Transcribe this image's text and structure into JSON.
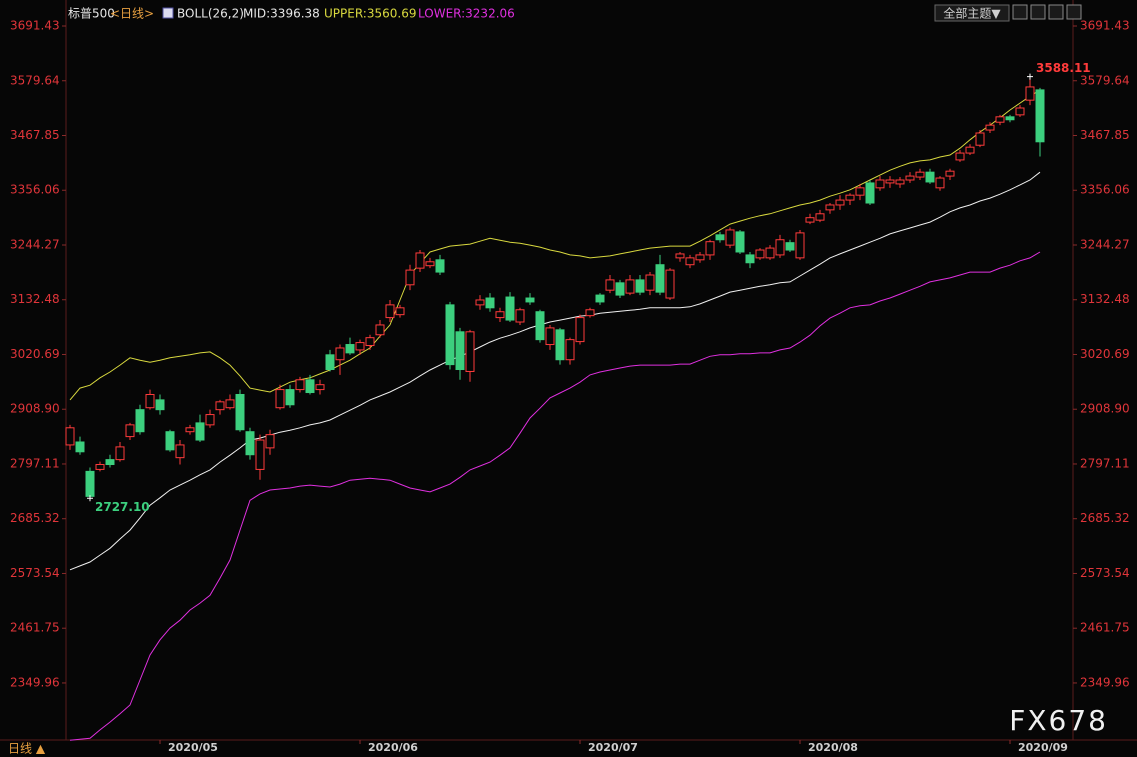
{
  "chart_data": {
    "type": "candlestick",
    "title": "标普500",
    "period": "<日线>",
    "indicator": "BOLL(26,2)",
    "toolbar": "全部主题▼",
    "footer_period": "日线 ▲",
    "watermark": "FX678",
    "annotations": {
      "max": "3588.11",
      "min": "2727.10"
    },
    "up_color": "#ff3b3b",
    "down_color": "#3ccf7e",
    "categories": [
      null,
      null,
      null,
      null,
      null,
      null,
      null,
      null,
      null,
      "2020/05",
      null,
      null,
      null,
      null,
      null,
      null,
      null,
      null,
      null,
      null,
      null,
      null,
      null,
      null,
      null,
      null,
      null,
      null,
      null,
      "2020/06",
      null,
      null,
      null,
      null,
      null,
      null,
      null,
      null,
      null,
      null,
      null,
      null,
      null,
      null,
      null,
      null,
      null,
      null,
      null,
      null,
      null,
      "2020/07",
      null,
      null,
      null,
      null,
      null,
      null,
      null,
      null,
      null,
      null,
      null,
      null,
      null,
      null,
      null,
      null,
      null,
      null,
      null,
      null,
      null,
      "2020/08",
      null,
      null,
      null,
      null,
      null,
      null,
      null,
      null,
      null,
      null,
      null,
      null,
      null,
      null,
      null,
      null,
      null,
      null,
      null,
      null,
      "2020/09",
      null,
      null,
      null
    ],
    "open": [
      2836,
      2842,
      2782,
      2786,
      2806,
      2806,
      2853,
      2908,
      2912,
      2928,
      2863,
      2810,
      2863,
      2881,
      2877,
      2908,
      2912,
      2939,
      2863,
      2786,
      2830,
      2912,
      2949,
      2949,
      2969,
      2949,
      3020,
      3010,
      3041,
      3030,
      3039,
      3061,
      3096,
      3102,
      3163,
      3197,
      3202,
      3214,
      3122,
      3067,
      2986,
      3122,
      3136,
      3096,
      3138,
      3087,
      3136,
      3108,
      3041,
      3071,
      3010,
      3047,
      3100,
      3142,
      3152,
      3167,
      3146,
      3173,
      3152,
      3204,
      3136,
      3218,
      3204,
      3214,
      3224,
      3265,
      3244,
      3271,
      3224,
      3218,
      3218,
      3224,
      3249,
      3218,
      3291,
      3295,
      3316,
      3326,
      3336,
      3346,
      3371,
      3361,
      3371,
      3369,
      3377,
      3383,
      3393,
      3361,
      3385,
      3418,
      3432,
      3448,
      3479,
      3495,
      3506,
      3510,
      3540,
      3561
    ],
    "high": [
      2877,
      2853,
      2790,
      2802,
      2816,
      2842,
      2881,
      2918,
      2949,
      2939,
      2867,
      2846,
      2877,
      2898,
      2908,
      2928,
      2939,
      2949,
      2871,
      2857,
      2867,
      2959,
      2959,
      2975,
      2979,
      2969,
      3030,
      3041,
      3055,
      3051,
      3061,
      3091,
      3132,
      3122,
      3204,
      3234,
      3218,
      3224,
      3128,
      3075,
      3071,
      3142,
      3146,
      3116,
      3148,
      3116,
      3146,
      3112,
      3081,
      3075,
      3055,
      3102,
      3116,
      3146,
      3183,
      3173,
      3183,
      3183,
      3189,
      3224,
      3197,
      3230,
      3224,
      3230,
      3255,
      3271,
      3280,
      3275,
      3230,
      3238,
      3244,
      3265,
      3255,
      3275,
      3308,
      3316,
      3330,
      3346,
      3350,
      3369,
      3377,
      3385,
      3385,
      3383,
      3393,
      3400,
      3400,
      3385,
      3400,
      3438,
      3450,
      3479,
      3495,
      3510,
      3510,
      3530,
      3588.11,
      3565
    ],
    "low": [
      2826,
      2816,
      2727.1,
      2782,
      2790,
      2802,
      2846,
      2857,
      2908,
      2898,
      2822,
      2796,
      2857,
      2842,
      2871,
      2898,
      2908,
      2863,
      2806,
      2765,
      2816,
      2908,
      2912,
      2943,
      2939,
      2939,
      2986,
      2979,
      3020,
      3020,
      3030,
      3055,
      3087,
      3096,
      3152,
      3189,
      3197,
      3183,
      2990,
      2969,
      2965,
      3112,
      3108,
      3087,
      3087,
      3081,
      3122,
      3045,
      3030,
      3000,
      3000,
      3041,
      3096,
      3122,
      3146,
      3136,
      3142,
      3142,
      3142,
      3142,
      3132,
      3210,
      3197,
      3208,
      3214,
      3249,
      3238,
      3226,
      3197,
      3214,
      3214,
      3218,
      3230,
      3214,
      3287,
      3291,
      3308,
      3316,
      3326,
      3336,
      3326,
      3355,
      3361,
      3361,
      3371,
      3377,
      3369,
      3355,
      3377,
      3414,
      3428,
      3444,
      3473,
      3489,
      3495,
      3506,
      3530,
      3425
    ],
    "close": [
      2871,
      2822,
      2731,
      2796,
      2796,
      2832,
      2877,
      2863,
      2939,
      2908,
      2826,
      2836,
      2871,
      2846,
      2898,
      2924,
      2928,
      2867,
      2816,
      2846,
      2857,
      2949,
      2918,
      2969,
      2943,
      2959,
      2990,
      3034,
      3024,
      3045,
      3055,
      3081,
      3122,
      3116,
      3193,
      3228,
      3210,
      3189,
      3000,
      2990,
      3067,
      3132,
      3116,
      3108,
      3091,
      3112,
      3128,
      3051,
      3075,
      3010,
      3051,
      3096,
      3112,
      3128,
      3173,
      3142,
      3173,
      3148,
      3183,
      3148,
      3193,
      3226,
      3218,
      3224,
      3251,
      3255,
      3275,
      3230,
      3208,
      3234,
      3238,
      3255,
      3234,
      3269,
      3300,
      3308,
      3326,
      3336,
      3346,
      3361,
      3330,
      3377,
      3377,
      3377,
      3385,
      3393,
      3373,
      3381,
      3395,
      3432,
      3444,
      3473,
      3489,
      3506,
      3500,
      3524,
      3567,
      3455
    ],
    "bands": {
      "mid": {
        "label": "MID:3396.38",
        "color": "#f0f0f0",
        "values": [
          2581,
          2589,
          2597,
          2611,
          2625,
          2644,
          2662,
          2687,
          2713,
          2728,
          2744,
          2754,
          2764,
          2775,
          2785,
          2801,
          2815,
          2830,
          2846,
          2850,
          2856,
          2862,
          2866,
          2871,
          2877,
          2881,
          2887,
          2897,
          2907,
          2917,
          2928,
          2936,
          2944,
          2954,
          2964,
          2977,
          2989,
          2999,
          3009,
          3017,
          3026,
          3036,
          3046,
          3054,
          3060,
          3067,
          3075,
          3081,
          3087,
          3091,
          3095,
          3099,
          3101,
          3105,
          3107,
          3109,
          3111,
          3113,
          3116,
          3116,
          3116,
          3116,
          3118,
          3124,
          3132,
          3140,
          3148,
          3152,
          3156,
          3160,
          3163,
          3167,
          3169,
          3181,
          3193,
          3205,
          3218,
          3226,
          3234,
          3242,
          3250,
          3258,
          3267,
          3273,
          3279,
          3285,
          3291,
          3301,
          3312,
          3320,
          3326,
          3334,
          3340,
          3348,
          3357,
          3367,
          3377,
          3393
        ]
      },
      "upper": {
        "label": "UPPER:3560.69",
        "color": "#d9d93f",
        "values": [
          2928,
          2952,
          2958,
          2973,
          2985,
          2999,
          3014,
          3009,
          3005,
          3009,
          3014,
          3017,
          3020,
          3024,
          3026,
          3014,
          2999,
          2977,
          2952,
          2948,
          2944,
          2954,
          2964,
          2969,
          2973,
          2981,
          2989,
          2999,
          3009,
          3022,
          3034,
          3058,
          3081,
          3132,
          3183,
          3207,
          3230,
          3236,
          3242,
          3244,
          3246,
          3252,
          3258,
          3254,
          3250,
          3248,
          3244,
          3240,
          3234,
          3230,
          3224,
          3222,
          3218,
          3220,
          3222,
          3226,
          3230,
          3234,
          3238,
          3240,
          3242,
          3242,
          3242,
          3252,
          3263,
          3275,
          3287,
          3293,
          3299,
          3304,
          3308,
          3314,
          3320,
          3326,
          3330,
          3336,
          3344,
          3350,
          3357,
          3367,
          3377,
          3387,
          3397,
          3405,
          3412,
          3416,
          3418,
          3424,
          3428,
          3442,
          3459,
          3475,
          3489,
          3504,
          3520,
          3534,
          3548,
          3561
        ]
      },
      "lower": {
        "label": "LOWER:3232.06",
        "color": "#e030e0",
        "values": [
          2233,
          2235,
          2237,
          2254,
          2270,
          2287,
          2305,
          2356,
          2407,
          2438,
          2462,
          2478,
          2499,
          2513,
          2529,
          2564,
          2601,
          2662,
          2723,
          2736,
          2744,
          2746,
          2748,
          2752,
          2754,
          2752,
          2750,
          2756,
          2764,
          2766,
          2768,
          2766,
          2764,
          2756,
          2748,
          2744,
          2740,
          2748,
          2756,
          2770,
          2785,
          2793,
          2801,
          2815,
          2830,
          2860,
          2891,
          2911,
          2932,
          2942,
          2952,
          2964,
          2979,
          2985,
          2989,
          2993,
          2997,
          2999,
          2999,
          2999,
          2999,
          3001,
          3001,
          3009,
          3017,
          3020,
          3020,
          3022,
          3022,
          3024,
          3024,
          3030,
          3034,
          3046,
          3060,
          3079,
          3095,
          3105,
          3116,
          3120,
          3122,
          3130,
          3136,
          3144,
          3152,
          3160,
          3169,
          3173,
          3177,
          3183,
          3189,
          3189,
          3189,
          3197,
          3203,
          3212,
          3218,
          3230
        ]
      }
    },
    "ylim": [
      2230,
      3728
    ],
    "yticks": [
      2349.96,
      2461.75,
      2573.54,
      2685.32,
      2797.11,
      {
        "value": 2908.9,
        "label": "2908.90"
      },
      3020.69,
      3132.48,
      3244.27,
      3356.06,
      3467.85,
      3579.64,
      3691.43
    ],
    "grid": false
  }
}
